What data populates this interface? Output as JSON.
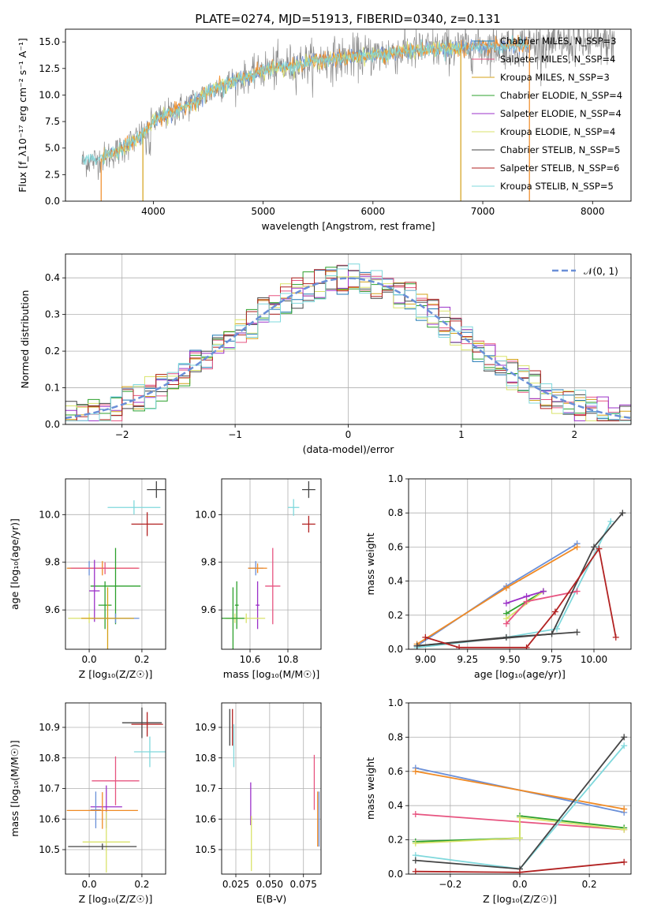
{
  "figure": {
    "title": "PLATE=0274, MJD=51913, FIBERID=0340, z=0.131",
    "colors": {
      "Chabrier MILES": "#1f77b4",
      "Salpeter MILES": "#e75480",
      "Kroupa MILES": "#d4a017",
      "Chabrier ELODIE": "#2ca02c",
      "Salpeter ELODIE": "#9b30c8",
      "Kroupa ELODIE": "#d9e36b",
      "Chabrier STELIB": "#444444",
      "Salpeter STELIB": "#b22222",
      "Kroupa STELIB": "#7fd8dc",
      "blue_alt": "#6a8fd8",
      "orange": "#f08a24"
    }
  },
  "chart_data": [
    {
      "id": "spectrum",
      "type": "line",
      "title": "PLATE=0274, MJD=51913, FIBERID=0340, z=0.131",
      "xlabel": "wavelength [Angstrom, rest frame]",
      "ylabel": "Flux [f_λ10⁻¹⁷ erg cm⁻² s⁻¹ A⁻¹]",
      "xlim": [
        3200,
        8350
      ],
      "ylim": [
        0,
        16.2
      ],
      "xticks": [
        "4000",
        "5000",
        "6000",
        "7000",
        "8000"
      ],
      "yticks": [
        "0.0",
        "2.5",
        "5.0",
        "7.5",
        "10.0",
        "12.5",
        "15.0"
      ],
      "legend_position": "top-right",
      "legend": [
        "Chabrier MILES, N_SSP=3",
        "Salpeter MILES, N_SSP=4",
        "Kroupa MILES, N_SSP=3",
        "Chabrier ELODIE, N_SSP=4",
        "Salpeter ELODIE, N_SSP=4",
        "Kroupa ELODIE, N_SSP=4",
        "Chabrier STELIB, N_SSP=5",
        "Salpeter STELIB, N_SSP=6",
        "Kroupa STELIB, N_SSP=5"
      ],
      "continuum": {
        "x": [
          3350,
          3500,
          3700,
          3900,
          4000,
          4300,
          4600,
          5000,
          5500,
          6000,
          6500,
          7000,
          7500,
          8000,
          8200
        ],
        "y": [
          3.7,
          3.9,
          4.8,
          6.3,
          7.5,
          9.0,
          10.8,
          12.3,
          13.2,
          13.8,
          14.3,
          14.5,
          14.8,
          14.9,
          14.9
        ]
      }
    },
    {
      "id": "residuals",
      "type": "histogram",
      "xlabel": "(data-model)/error",
      "ylabel": "Normed distribution",
      "xlim": [
        -2.5,
        2.5
      ],
      "ylim": [
        0,
        0.465
      ],
      "xticks": [
        "−2",
        "−1",
        "0",
        "1",
        "2"
      ],
      "yticks": [
        "0.0",
        "0.1",
        "0.2",
        "0.3",
        "0.4"
      ],
      "grid": true,
      "legend_position": "top-right",
      "legend": [
        "𝒩(0, 1)"
      ],
      "bin_width": 0.1
    },
    {
      "id": "age-vs-Z",
      "type": "scatter",
      "xlabel": "Z [log₁₀(Z/Z☉)]",
      "ylabel": "age  [log₁₀(age/yr)]",
      "xlim": [
        -0.09,
        0.29
      ],
      "ylim": [
        9.435,
        10.15
      ],
      "xticks": [
        "0.0",
        "0.2"
      ],
      "yticks": [
        "9.6",
        "9.8",
        "10.0"
      ],
      "points": [
        {
          "x": 0.255,
          "y": 10.105,
          "xerr": 0.036,
          "yerr": 0.035
        },
        {
          "x": 0.17,
          "y": 10.03,
          "xerr": 0.1,
          "yerr": 0.03
        },
        {
          "x": 0.22,
          "y": 9.96,
          "xerr": 0.06,
          "yerr": 0.05
        },
        {
          "x": 0.0,
          "y": 9.775,
          "xerr": 0.08,
          "yerr": 0.03
        },
        {
          "x": 0.05,
          "y": 9.775,
          "xerr": 0.135,
          "yerr": 0.03
        },
        {
          "x": 0.06,
          "y": 9.775,
          "xerr": 0.13,
          "yerr": 0.025
        },
        {
          "x": 0.1,
          "y": 9.7,
          "xerr": 0.095,
          "yerr": 0.16
        },
        {
          "x": 0.02,
          "y": 9.68,
          "xerr": 0.02,
          "yerr": 0.13
        },
        {
          "x": 0.06,
          "y": 9.62,
          "xerr": 0.025,
          "yerr": 0.1
        },
        {
          "x": 0.0,
          "y": 9.565,
          "xerr": 0.08,
          "yerr": 0.02
        },
        {
          "x": 0.1,
          "y": 9.565,
          "xerr": 0.09,
          "yerr": 0.02
        },
        {
          "x": 0.07,
          "y": 9.565,
          "xerr": 0.1,
          "yerr": 0.13
        }
      ]
    },
    {
      "id": "age-vs-mass",
      "type": "scatter",
      "xlabel": "mass [log₁₀(M/M☉)]",
      "ylabel": "",
      "xlim": [
        10.45,
        10.975
      ],
      "ylim": [
        9.435,
        10.15
      ],
      "xticks": [
        "10.6",
        "10.8"
      ],
      "yticks": [
        "9.6",
        "9.8",
        "10.0"
      ],
      "points": [
        {
          "x": 10.91,
          "y": 10.105,
          "xerr": 0.035,
          "yerr": 0.035
        },
        {
          "x": 10.83,
          "y": 10.03,
          "xerr": 0.03,
          "yerr": 0.035
        },
        {
          "x": 10.91,
          "y": 9.96,
          "xerr": 0.035,
          "yerr": 0.035
        },
        {
          "x": 10.63,
          "y": 9.775,
          "xerr": 0.04,
          "yerr": 0.03
        },
        {
          "x": 10.64,
          "y": 9.775,
          "xerr": 0.05,
          "yerr": 0.02
        },
        {
          "x": 10.72,
          "y": 9.7,
          "xerr": 0.04,
          "yerr": 0.16
        },
        {
          "x": 10.53,
          "y": 9.62,
          "xerr": 0.01,
          "yerr": 0.1
        },
        {
          "x": 10.64,
          "y": 9.62,
          "xerr": 0.01,
          "yerr": 0.1
        },
        {
          "x": 10.52,
          "y": 9.565,
          "xerr": 0.05,
          "yerr": 0.02
        },
        {
          "x": 10.58,
          "y": 9.565,
          "xerr": 0.1,
          "yerr": 0.02
        },
        {
          "x": 10.51,
          "y": 9.565,
          "xerr": 0.06,
          "yerr": 0.13
        }
      ]
    },
    {
      "id": "weight-vs-age",
      "type": "line",
      "xlabel": "age  [log₁₀(age/yr)]",
      "ylabel": "mass weight",
      "xlim": [
        8.9,
        10.22
      ],
      "ylim": [
        0,
        1.0
      ],
      "xticks": [
        "9.00",
        "9.25",
        "9.50",
        "9.75",
        "10.00"
      ],
      "yticks": [
        "0.0",
        "0.2",
        "0.4",
        "0.6",
        "0.8",
        "1.0"
      ],
      "grid": true,
      "series": [
        {
          "x": [
            8.95,
            9.48,
            9.9
          ],
          "y": [
            0.02,
            0.37,
            0.62
          ]
        },
        {
          "x": [
            8.95,
            9.48,
            9.9
          ],
          "y": [
            0.03,
            0.36,
            0.6
          ]
        },
        {
          "x": [
            8.95,
            9.48,
            9.78,
            10.1
          ],
          "y": [
            0.01,
            0.07,
            0.12,
            0.75
          ]
        },
        {
          "x": [
            8.95,
            9.48,
            9.9
          ],
          "y": [
            0.02,
            0.07,
            0.1
          ]
        },
        {
          "x": [
            9.48,
            9.7
          ],
          "y": [
            0.21,
            0.34
          ]
        },
        {
          "x": [
            9.48,
            9.7
          ],
          "y": [
            0.18,
            0.34
          ]
        },
        {
          "x": [
            9.48,
            9.6,
            9.7
          ],
          "y": [
            0.27,
            0.31,
            0.34
          ]
        },
        {
          "x": [
            9.48,
            9.6,
            9.9
          ],
          "y": [
            0.15,
            0.28,
            0.34
          ]
        },
        {
          "x": [
            8.95,
            9.75,
            10.0,
            10.17
          ],
          "y": [
            0.02,
            0.09,
            0.6,
            0.8
          ]
        },
        {
          "x": [
            9.0,
            9.2,
            9.6,
            9.77,
            10.03,
            10.13
          ],
          "y": [
            0.07,
            0.01,
            0.01,
            0.22,
            0.59,
            0.07
          ]
        }
      ]
    },
    {
      "id": "mass-vs-Z",
      "type": "scatter",
      "xlabel": "Z [log₁₀(Z/Z☉)]",
      "ylabel": "mass [log₁₀(M/M☉)]",
      "xlim": [
        -0.09,
        0.29
      ],
      "ylim": [
        10.42,
        10.98
      ],
      "xticks": [
        "0.0",
        "0.2"
      ],
      "yticks": [
        "10.5",
        "10.6",
        "10.7",
        "10.8",
        "10.9"
      ],
      "points": [
        {
          "x": 0.2,
          "y": 10.915,
          "xerr": 0.075,
          "yerr": 0.05
        },
        {
          "x": 0.22,
          "y": 10.91,
          "xerr": 0.06,
          "yerr": 0.04
        },
        {
          "x": 0.23,
          "y": 10.82,
          "xerr": 0.06,
          "yerr": 0.05
        },
        {
          "x": 0.1,
          "y": 10.725,
          "xerr": 0.09,
          "yerr": 0.08
        },
        {
          "x": 0.065,
          "y": 10.64,
          "xerr": 0.06,
          "yerr": 0.07
        },
        {
          "x": 0.025,
          "y": 10.63,
          "xerr": 0.02,
          "yerr": 0.06
        },
        {
          "x": 0.05,
          "y": 10.628,
          "xerr": 0.135,
          "yerr": 0.06
        },
        {
          "x": 0.065,
          "y": 10.525,
          "xerr": 0.09,
          "yerr": 0.1
        },
        {
          "x": 0.05,
          "y": 10.51,
          "xerr": 0.13,
          "yerr": 0.01
        }
      ]
    },
    {
      "id": "mass-vs-EBV",
      "type": "scatter",
      "xlabel": "E(B-V)",
      "ylabel": "",
      "xlim": [
        0.0145,
        0.088
      ],
      "ylim": [
        10.42,
        10.98
      ],
      "xticks": [
        "0.025",
        "0.050",
        "0.075"
      ],
      "yticks": [
        "10.5",
        "10.6",
        "10.7",
        "10.8",
        "10.9"
      ],
      "points": [
        {
          "x": 0.0205,
          "y": 10.9,
          "yerr": 0.06
        },
        {
          "x": 0.0225,
          "y": 10.9,
          "yerr": 0.06
        },
        {
          "x": 0.0235,
          "y": 10.84,
          "yerr": 0.07
        },
        {
          "x": 0.036,
          "y": 10.65,
          "yerr": 0.07
        },
        {
          "x": 0.0365,
          "y": 10.52,
          "yerr": 0.09
        },
        {
          "x": 0.083,
          "y": 10.72,
          "yerr": 0.09
        },
        {
          "x": 0.0855,
          "y": 10.6,
          "yerr": 0.09
        },
        {
          "x": 0.0865,
          "y": 10.6,
          "yerr": 0.09
        }
      ]
    },
    {
      "id": "weight-vs-Z",
      "type": "line",
      "xlabel": "Z [log₁₀(Z/Z☉)]",
      "ylabel": "mass weight",
      "xlim": [
        -0.32,
        0.32
      ],
      "ylim": [
        0,
        1.0
      ],
      "xticks": [
        "−0.2",
        "0.0",
        "0.2"
      ],
      "yticks": [
        "0.0",
        "0.2",
        "0.4",
        "0.6",
        "0.8",
        "1.0"
      ],
      "grid": true,
      "series": [
        {
          "x": [
            -0.3,
            0.3
          ],
          "y": [
            0.62,
            0.36
          ]
        },
        {
          "x": [
            -0.3,
            0.3
          ],
          "y": [
            0.6,
            0.38
          ]
        },
        {
          "x": [
            -0.3,
            0.3
          ],
          "y": [
            0.35,
            0.26
          ]
        },
        {
          "x": [
            -0.3,
            0.0,
            0.0,
            0.3
          ],
          "y": [
            0.19,
            0.21,
            0.34,
            0.27
          ]
        },
        {
          "x": [
            -0.3,
            0.0,
            0.0,
            0.3
          ],
          "y": [
            0.18,
            0.21,
            0.33,
            0.26
          ]
        },
        {
          "x": [
            -0.3,
            0.0,
            0.3
          ],
          "y": [
            0.11,
            0.03,
            0.75
          ]
        },
        {
          "x": [
            -0.3,
            0.0,
            0.3
          ],
          "y": [
            0.08,
            0.03,
            0.8
          ]
        },
        {
          "x": [
            -0.3,
            0.0,
            0.3
          ],
          "y": [
            0.015,
            0.01,
            0.07
          ]
        }
      ]
    }
  ]
}
